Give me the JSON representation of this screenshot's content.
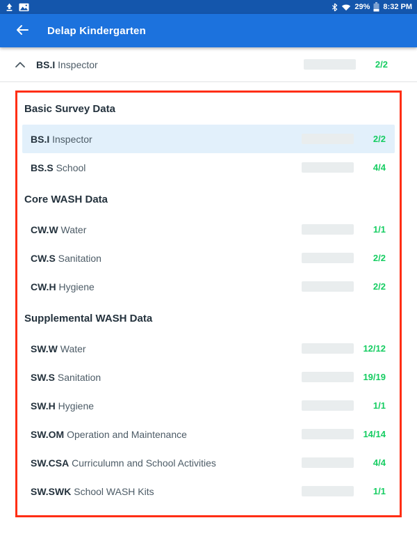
{
  "colors": {
    "status_bar": "#1456ac",
    "app_bar": "#1c72dd",
    "green": "#16cd62",
    "highlight": "#e2f0fb",
    "red": "#ff2e14",
    "text_dark": "#24323d",
    "text_mid": "#4c5b66"
  },
  "status_bar": {
    "left_icons": [
      "upload-icon",
      "screenshot-icon"
    ],
    "right_icons": [
      "bluetooth-icon",
      "wifi-icon",
      "battery-icon"
    ],
    "battery_percent": "29%",
    "time": "8:32 PM"
  },
  "app_bar": {
    "title": "Delap Kindergarten",
    "back_icon": "arrow-left"
  },
  "collapsed_header": {
    "code": "BS.I",
    "label": "Inspector",
    "count": "2/2",
    "progress": 1,
    "chevron": "chevron-up"
  },
  "sections": [
    {
      "title": "Basic Survey Data",
      "rows": [
        {
          "code": "BS.I",
          "label": "Inspector",
          "count": "2/2",
          "progress": 1,
          "highlighted": true
        },
        {
          "code": "BS.S",
          "label": "School",
          "count": "4/4",
          "progress": 1,
          "highlighted": false
        }
      ]
    },
    {
      "title": "Core WASH Data",
      "rows": [
        {
          "code": "CW.W",
          "label": "Water",
          "count": "1/1",
          "progress": 1,
          "highlighted": false
        },
        {
          "code": "CW.S",
          "label": "Sanitation",
          "count": "2/2",
          "progress": 1,
          "highlighted": false
        },
        {
          "code": "CW.H",
          "label": "Hygiene",
          "count": "2/2",
          "progress": 1,
          "highlighted": false
        }
      ]
    },
    {
      "title": "Supplemental WASH Data",
      "rows": [
        {
          "code": "SW.W",
          "label": "Water",
          "count": "12/12",
          "progress": 1,
          "highlighted": false
        },
        {
          "code": "SW.S",
          "label": "Sanitation",
          "count": "19/19",
          "progress": 1,
          "highlighted": false
        },
        {
          "code": "SW.H",
          "label": "Hygiene",
          "count": "1/1",
          "progress": 1,
          "highlighted": false
        },
        {
          "code": "SW.OM",
          "label": "Operation and Maintenance",
          "count": "14/14",
          "progress": 1,
          "highlighted": false
        },
        {
          "code": "SW.CSA",
          "label": "Curriculumn and School Activities",
          "count": "4/4",
          "progress": 1,
          "highlighted": false
        },
        {
          "code": "SW.SWK",
          "label": "School WASH Kits",
          "count": "1/1",
          "progress": 1,
          "highlighted": false
        }
      ]
    }
  ]
}
